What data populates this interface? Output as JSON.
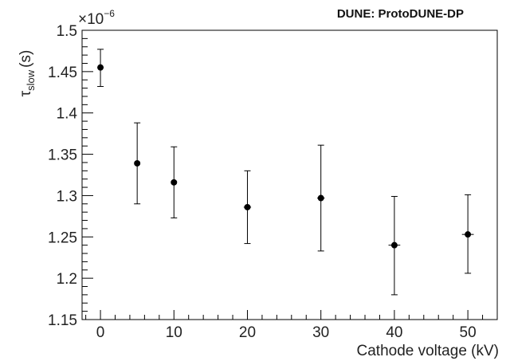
{
  "header": {
    "experiment_label": "DUNE: ProtoDUNE-DP"
  },
  "chart_data": {
    "type": "scatter",
    "title": "",
    "xlabel": "Cathode voltage (kV)",
    "ylabel": {
      "symbol": "τ",
      "subscript": "slow",
      "unit": "(s)"
    },
    "y_multiplier": {
      "base": "×10",
      "exponent": "−6"
    },
    "xlim": [
      -2.5,
      54.0
    ],
    "ylim": [
      1.15,
      1.5
    ],
    "x_ticks": [
      0,
      10,
      20,
      30,
      40,
      50
    ],
    "y_ticks": [
      1.15,
      1.2,
      1.25,
      1.3,
      1.35,
      1.4,
      1.45,
      1.5
    ],
    "y_tick_labels": [
      "1.15",
      "1.2",
      "1.25",
      "1.3",
      "1.35",
      "1.4",
      "1.45",
      "1.5"
    ],
    "marker_color": "#000000",
    "grid": false,
    "points": [
      {
        "x": 0,
        "y": 1.455,
        "yerr_low": 1.432,
        "yerr_high": 1.477,
        "xerr": 0.0
      },
      {
        "x": 5,
        "y": 1.339,
        "yerr_low": 1.29,
        "yerr_high": 1.388,
        "xerr": 0.0
      },
      {
        "x": 10,
        "y": 1.316,
        "yerr_low": 1.273,
        "yerr_high": 1.359,
        "xerr": 0.0
      },
      {
        "x": 20,
        "y": 1.286,
        "yerr_low": 1.242,
        "yerr_high": 1.33,
        "xerr": 0.5
      },
      {
        "x": 30,
        "y": 1.297,
        "yerr_low": 1.233,
        "yerr_high": 1.361,
        "xerr": 0.5
      },
      {
        "x": 40,
        "y": 1.24,
        "yerr_low": 1.18,
        "yerr_high": 1.299,
        "xerr": 0.8
      },
      {
        "x": 50,
        "y": 1.253,
        "yerr_low": 1.206,
        "yerr_high": 1.301,
        "xerr": 0.8
      }
    ]
  }
}
